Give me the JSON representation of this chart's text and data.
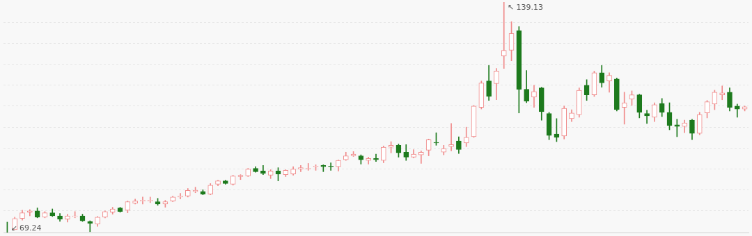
{
  "chart_data": {
    "type": "candlestick",
    "categories": [
      null,
      null,
      null,
      null,
      null,
      null,
      null,
      null,
      null,
      null,
      null,
      null,
      null,
      null,
      null,
      null,
      null,
      null,
      null,
      null,
      null,
      null,
      null,
      null,
      null,
      null,
      null,
      null,
      null,
      null,
      null,
      null,
      null,
      null,
      null,
      null,
      null,
      null,
      null,
      null,
      null,
      null,
      null,
      null,
      null,
      null,
      null,
      null,
      null,
      null,
      null,
      null,
      null,
      null,
      null,
      null,
      null,
      null,
      null,
      null,
      null,
      null,
      null,
      null,
      null,
      null,
      null,
      null,
      null,
      null,
      null,
      null,
      null,
      null,
      null,
      null,
      null,
      null,
      null,
      null,
      null,
      null,
      null,
      null,
      null,
      null,
      null,
      null,
      null,
      null,
      null,
      null,
      null,
      null,
      null,
      null,
      null,
      null,
      null
    ],
    "ohlc": [
      [
        69.9,
        72.4,
        69.24,
        69.9
      ],
      [
        70.1,
        73.9,
        70.1,
        73.5
      ],
      [
        73.5,
        76.0,
        73.0,
        75.2
      ],
      [
        75.4,
        76.2,
        74.3,
        75.8
      ],
      [
        75.8,
        76.7,
        73.7,
        73.9
      ],
      [
        73.9,
        75.6,
        73.7,
        75.2
      ],
      [
        75.2,
        76.4,
        74.1,
        74.3
      ],
      [
        74.3,
        75.0,
        72.6,
        73.3
      ],
      [
        73.3,
        74.8,
        72.4,
        74.3
      ],
      [
        74.1,
        75.6,
        73.7,
        74.3
      ],
      [
        74.3,
        74.8,
        72.6,
        72.8
      ],
      [
        72.6,
        72.8,
        69.5,
        72.0
      ],
      [
        71.8,
        74.1,
        71.1,
        73.9
      ],
      [
        73.9,
        75.8,
        73.7,
        75.6
      ],
      [
        75.4,
        76.9,
        74.8,
        76.4
      ],
      [
        76.7,
        76.9,
        75.4,
        75.6
      ],
      [
        76.0,
        78.8,
        75.2,
        78.6
      ],
      [
        78.1,
        79.4,
        77.9,
        78.8
      ],
      [
        78.8,
        80.0,
        77.9,
        79.0
      ],
      [
        78.8,
        80.0,
        78.3,
        79.0
      ],
      [
        78.6,
        79.6,
        77.5,
        77.9
      ],
      [
        77.9,
        79.0,
        76.9,
        78.6
      ],
      [
        78.8,
        80.3,
        78.6,
        80.0
      ],
      [
        80.0,
        81.1,
        79.4,
        80.3
      ],
      [
        80.3,
        82.6,
        80.0,
        82.0
      ],
      [
        81.7,
        83.0,
        81.3,
        82.0
      ],
      [
        81.7,
        82.2,
        80.7,
        80.9
      ],
      [
        80.9,
        84.1,
        80.7,
        83.6
      ],
      [
        83.9,
        85.1,
        83.4,
        84.9
      ],
      [
        84.9,
        85.1,
        83.9,
        84.1
      ],
      [
        83.9,
        86.6,
        83.6,
        86.4
      ],
      [
        86.2,
        86.8,
        85.3,
        86.6
      ],
      [
        86.4,
        88.7,
        86.2,
        88.5
      ],
      [
        88.7,
        89.2,
        87.5,
        87.7
      ],
      [
        87.9,
        89.6,
        86.8,
        87.2
      ],
      [
        86.6,
        88.3,
        85.6,
        87.9
      ],
      [
        87.9,
        88.9,
        84.9,
        87.0
      ],
      [
        86.8,
        88.3,
        86.2,
        88.1
      ],
      [
        87.0,
        89.2,
        86.6,
        88.5
      ],
      [
        88.5,
        89.6,
        87.7,
        88.9
      ],
      [
        88.5,
        90.2,
        88.1,
        88.7
      ],
      [
        89.2,
        89.8,
        88.1,
        89.4
      ],
      [
        89.6,
        89.8,
        87.7,
        89.2
      ],
      [
        89.4,
        90.4,
        88.1,
        89.2
      ],
      [
        89.2,
        91.3,
        87.9,
        91.1
      ],
      [
        91.3,
        93.6,
        91.1,
        92.5
      ],
      [
        92.5,
        93.8,
        92.3,
        93.0
      ],
      [
        92.5,
        92.8,
        90.0,
        91.3
      ],
      [
        91.1,
        92.1,
        90.0,
        91.7
      ],
      [
        91.7,
        93.0,
        90.8,
        91.3
      ],
      [
        91.1,
        95.5,
        90.4,
        95.1
      ],
      [
        95.1,
        96.8,
        93.4,
        95.7
      ],
      [
        95.7,
        96.1,
        92.1,
        93.4
      ],
      [
        93.6,
        95.9,
        91.1,
        92.1
      ],
      [
        92.1,
        94.4,
        91.9,
        93.0
      ],
      [
        92.8,
        94.0,
        90.2,
        93.6
      ],
      [
        94.2,
        97.6,
        92.5,
        97.4
      ],
      [
        96.6,
        99.5,
        95.7,
        96.4
      ],
      [
        93.6,
        95.7,
        92.8,
        94.7
      ],
      [
        95.3,
        102.3,
        94.0,
        95.9
      ],
      [
        97.0,
        98.3,
        93.2,
        94.4
      ],
      [
        96.4,
        101.2,
        95.3,
        98.1
      ],
      [
        98.3,
        107.8,
        98.1,
        107.6
      ],
      [
        107.2,
        115.2,
        106.7,
        114.6
      ],
      [
        115.2,
        119.9,
        109.3,
        110.5
      ],
      [
        114.4,
        119.0,
        109.5,
        118.2
      ],
      [
        122.8,
        139.13,
        119.0,
        124.5
      ],
      [
        124.5,
        133.2,
        121.3,
        129.6
      ],
      [
        130.5,
        131.7,
        105.5,
        112.7
      ],
      [
        112.7,
        118.4,
        108.6,
        109.1
      ],
      [
        110.3,
        113.9,
        107.2,
        112.0
      ],
      [
        113.1,
        113.3,
        103.3,
        105.9
      ],
      [
        105.3,
        105.7,
        97.4,
        98.7
      ],
      [
        99.1,
        103.8,
        96.8,
        98.1
      ],
      [
        98.5,
        107.6,
        97.6,
        106.9
      ],
      [
        103.8,
        106.5,
        102.9,
        105.5
      ],
      [
        105.0,
        113.1,
        104.2,
        112.4
      ],
      [
        113.9,
        115.6,
        109.3,
        111.0
      ],
      [
        111.0,
        118.2,
        110.5,
        117.7
      ],
      [
        117.7,
        119.9,
        113.3,
        114.6
      ],
      [
        115.2,
        117.7,
        111.8,
        116.9
      ],
      [
        115.8,
        116.1,
        106.1,
        106.5
      ],
      [
        107.2,
        111.8,
        102.1,
        108.6
      ],
      [
        109.7,
        112.2,
        107.8,
        111.0
      ],
      [
        111.0,
        111.2,
        104.0,
        105.7
      ],
      [
        105.3,
        106.3,
        102.3,
        104.6
      ],
      [
        104.2,
        108.6,
        102.9,
        108.0
      ],
      [
        108.4,
        109.9,
        104.4,
        105.7
      ],
      [
        105.7,
        108.6,
        100.4,
        101.7
      ],
      [
        101.9,
        103.6,
        98.3,
        101.4
      ],
      [
        101.4,
        103.3,
        99.5,
        102.5
      ],
      [
        103.3,
        103.6,
        97.4,
        99.3
      ],
      [
        99.3,
        105.7,
        98.9,
        105.0
      ],
      [
        105.5,
        109.3,
        104.0,
        108.9
      ],
      [
        108.2,
        112.4,
        106.5,
        111.8
      ],
      [
        111.0,
        113.7,
        109.5,
        111.6
      ],
      [
        111.8,
        113.1,
        106.1,
        107.2
      ],
      [
        107.6,
        108.2,
        104.2,
        106.7
      ],
      [
        106.7,
        107.6,
        106.1,
        107.4
      ]
    ],
    "yticks": [
      {
        "value": 75.8,
        "label": null
      },
      {
        "value": 82.2,
        "label": null
      },
      {
        "value": 88.5,
        "label": null
      },
      {
        "value": 94.9,
        "label": null
      },
      {
        "value": 101.2,
        "label": null
      },
      {
        "value": 107.6,
        "label": null
      },
      {
        "value": 113.9,
        "label": null
      },
      {
        "value": 120.3,
        "label": null
      },
      {
        "value": 126.6,
        "label": null
      },
      {
        "value": 133.0,
        "label": null
      }
    ],
    "grid": "y",
    "tick_labels": false,
    "annotations": [
      "↖ 139.13",
      "↙ 69.24"
    ]
  }
}
